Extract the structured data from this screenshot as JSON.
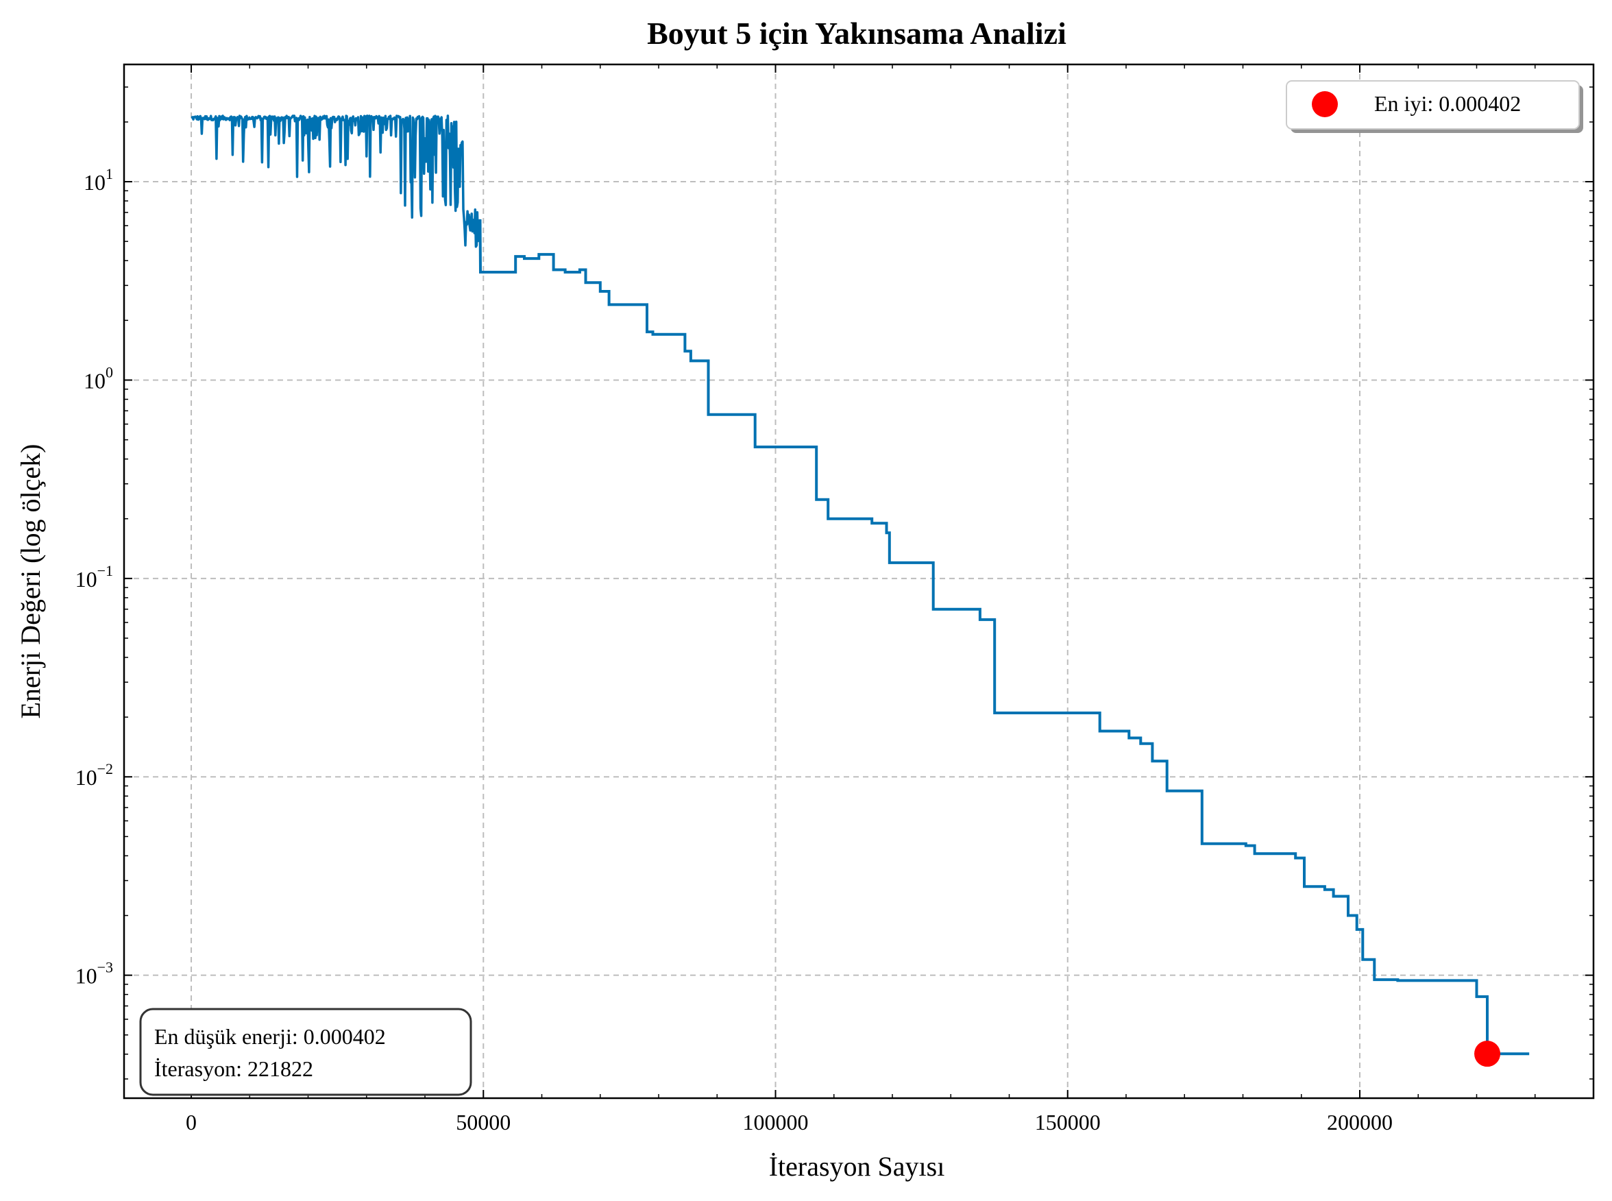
{
  "chart_data": {
    "type": "line",
    "title": "Boyut 5 için Yakınsama Analizi",
    "xlabel": "İterasyon Sayısı",
    "ylabel": "Enerji Değeri (log ölçek)",
    "xlim": [
      -11500,
      240000
    ],
    "ylim": [
      0.00024,
      39
    ],
    "yscale": "log",
    "grid": true,
    "x_ticks": [
      0,
      50000,
      100000,
      150000,
      200000
    ],
    "x_tick_labels": [
      "0",
      "50000",
      "100000",
      "150000",
      "200000"
    ],
    "y_ticks": [
      10,
      1,
      0.1,
      0.01,
      0.001
    ],
    "y_tick_labels": [
      {
        "base": "10",
        "exp": "1"
      },
      {
        "base": "10",
        "exp": "0"
      },
      {
        "base": "10",
        "exp": "−1"
      },
      {
        "base": "10",
        "exp": "−2"
      },
      {
        "base": "10",
        "exp": "−3"
      }
    ],
    "series": [
      {
        "color": "#0072B2",
        "noisy_segment": {
          "x_start": 0,
          "x_end": 49500,
          "y_max": 21.5
        },
        "step_points": [
          [
            49500,
            3.5
          ],
          [
            55500,
            4.2
          ],
          [
            57000,
            4.1
          ],
          [
            59500,
            4.3
          ],
          [
            62000,
            3.6
          ],
          [
            64000,
            3.5
          ],
          [
            66500,
            3.6
          ],
          [
            67500,
            3.1
          ],
          [
            70000,
            2.8
          ],
          [
            71500,
            2.4
          ],
          [
            78000,
            1.75
          ],
          [
            79000,
            1.7
          ],
          [
            84500,
            1.4
          ],
          [
            85500,
            1.25
          ],
          [
            88500,
            0.67
          ],
          [
            96500,
            0.46
          ],
          [
            107000,
            0.25
          ],
          [
            109000,
            0.2
          ],
          [
            116500,
            0.19
          ],
          [
            119000,
            0.17
          ],
          [
            119500,
            0.12
          ],
          [
            127000,
            0.07
          ],
          [
            135000,
            0.062
          ],
          [
            137500,
            0.021
          ],
          [
            155500,
            0.017
          ],
          [
            160500,
            0.0157
          ],
          [
            162500,
            0.0147
          ],
          [
            164500,
            0.012
          ],
          [
            167000,
            0.0085
          ],
          [
            173000,
            0.0046
          ],
          [
            180500,
            0.0045
          ],
          [
            182000,
            0.0041
          ],
          [
            189000,
            0.0039
          ],
          [
            190500,
            0.0028
          ],
          [
            194000,
            0.0027
          ],
          [
            195500,
            0.0025
          ],
          [
            198000,
            0.002
          ],
          [
            199500,
            0.0017
          ],
          [
            200500,
            0.0012
          ],
          [
            202500,
            0.00095
          ],
          [
            206500,
            0.00094
          ],
          [
            219000,
            0.00094
          ],
          [
            220000,
            0.00078
          ],
          [
            221822,
            0.000402
          ],
          [
            229000,
            0.000402
          ]
        ]
      }
    ],
    "best_point": {
      "x": 221822,
      "y": 0.000402,
      "color": "#FF0000"
    },
    "legend": {
      "position": "top-right",
      "label": "En iyi: 0.000402"
    },
    "annotation": {
      "position": "bottom-left",
      "line1": "En düşük enerji: 0.000402",
      "line2": "İterasyon: 221822"
    }
  }
}
